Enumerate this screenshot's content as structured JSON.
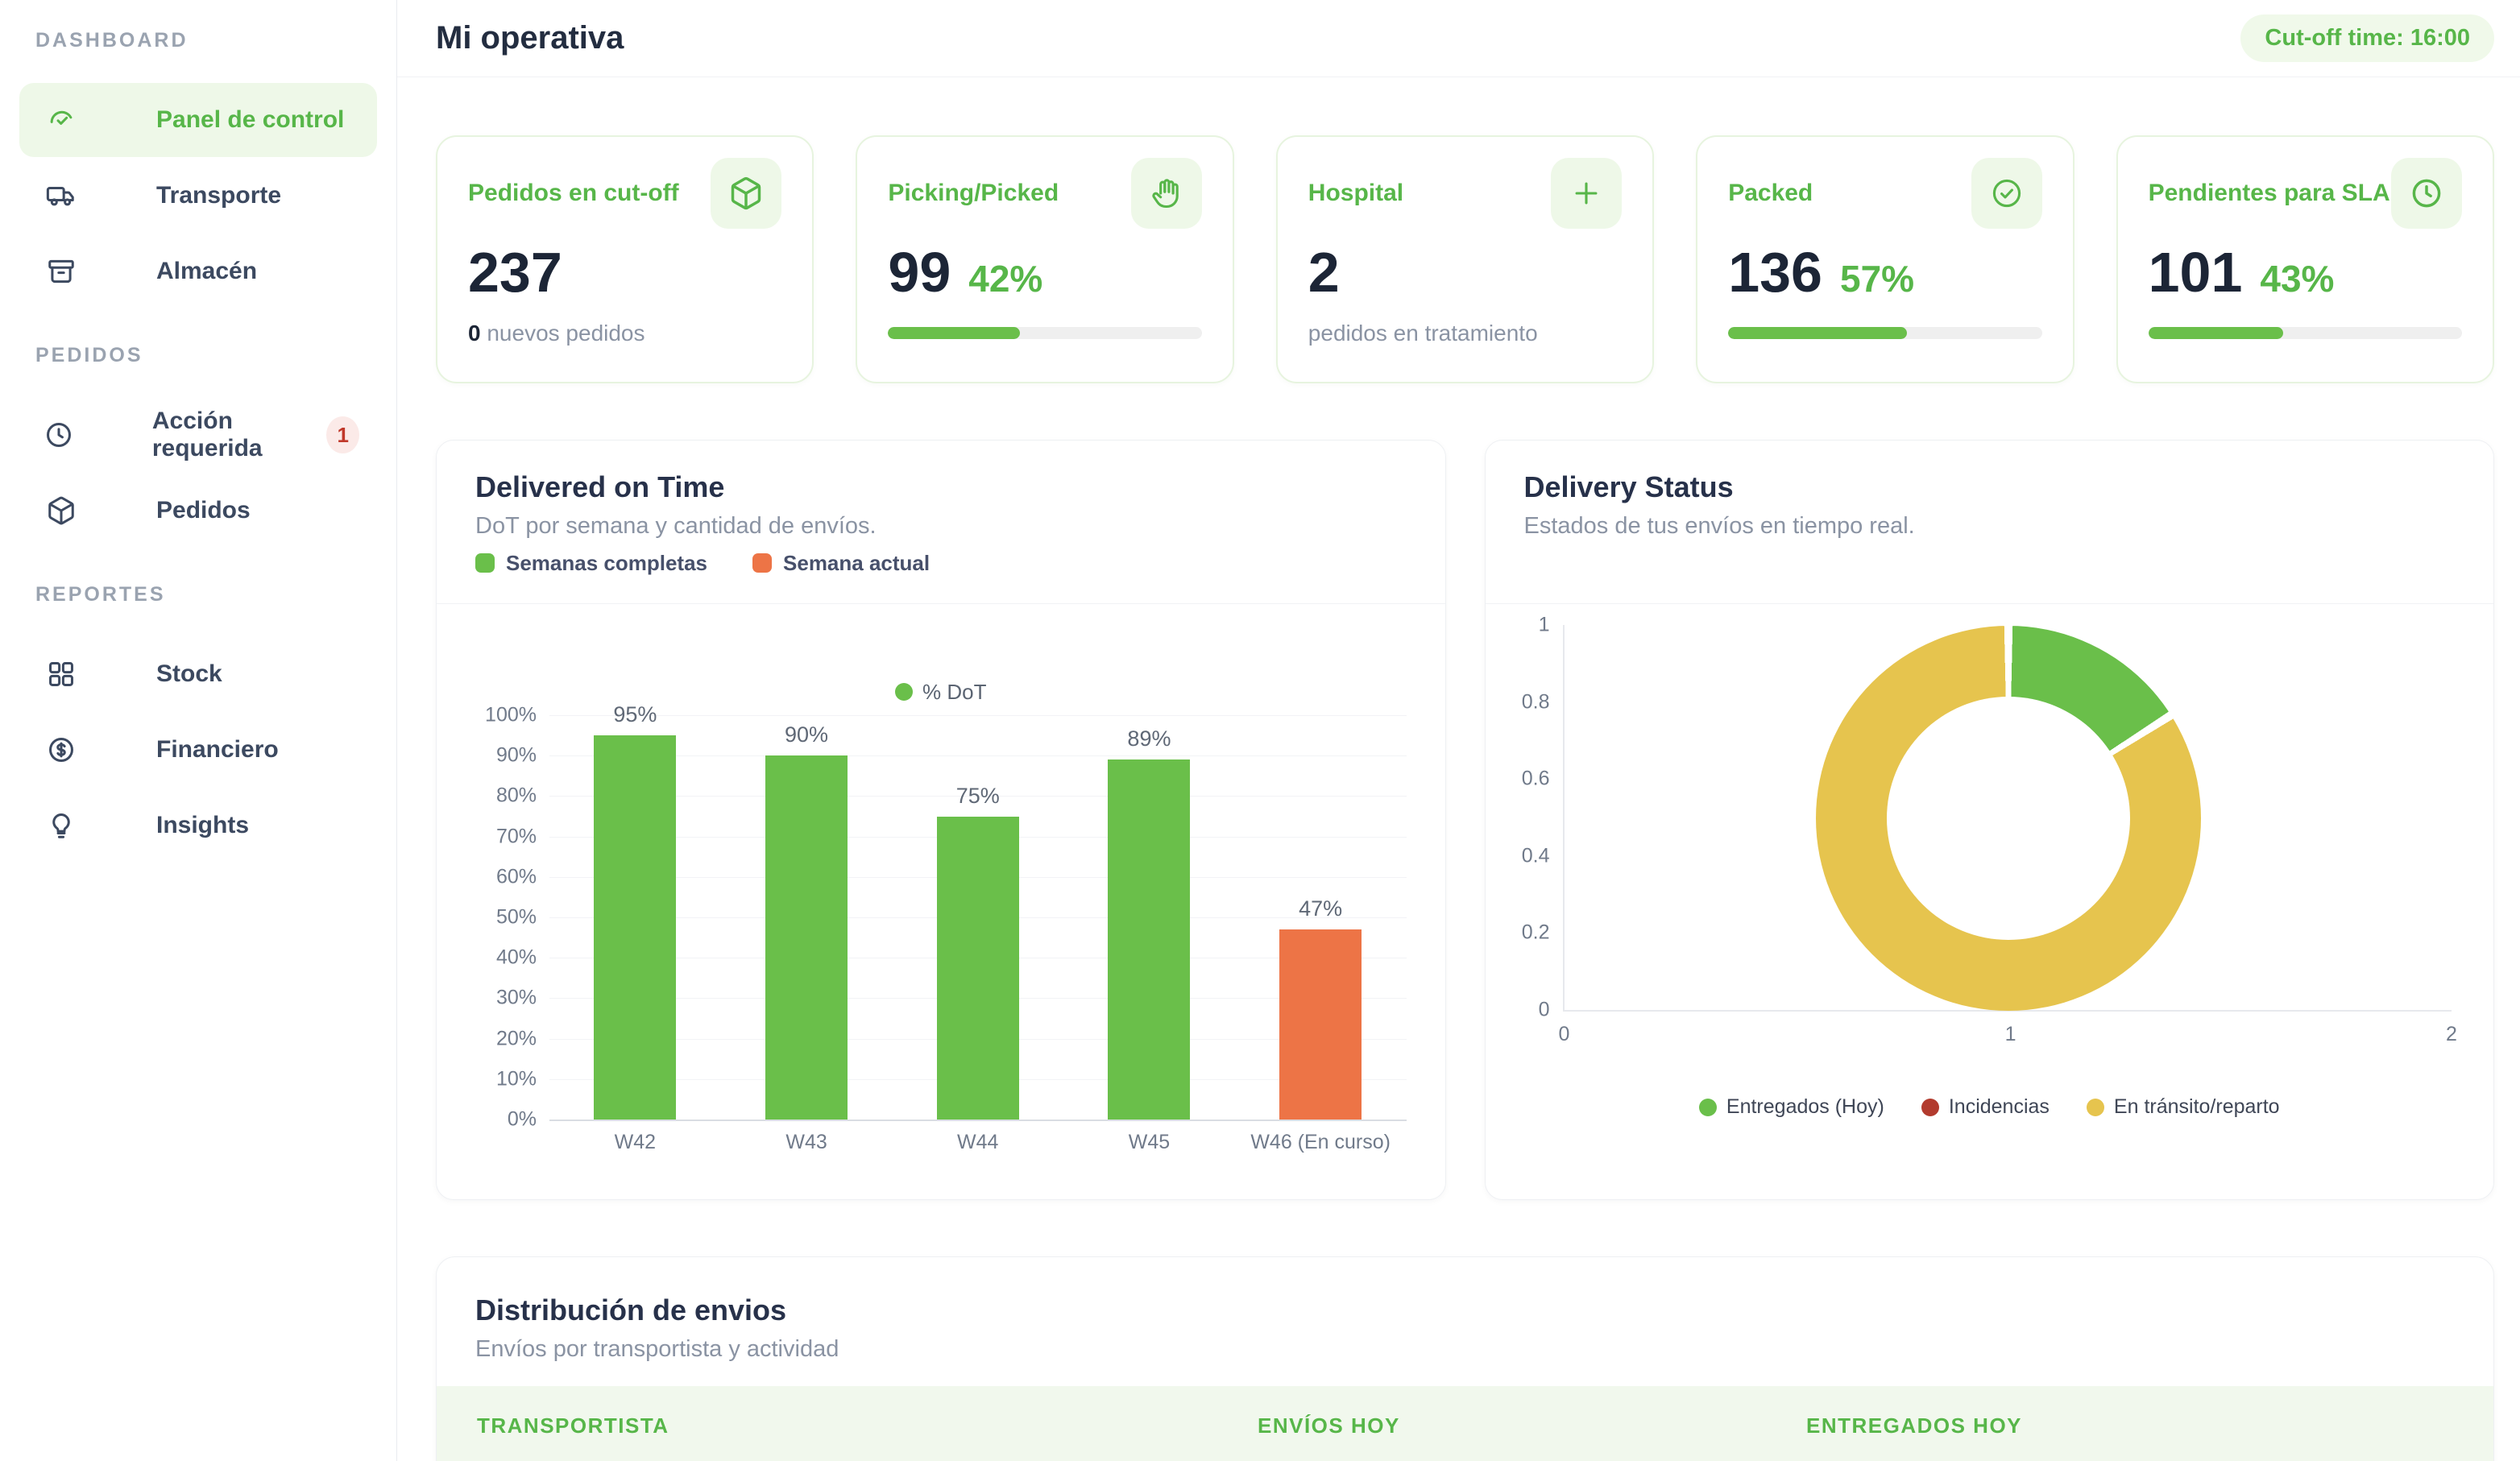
{
  "colors": {
    "accent_green_text": "#57b649",
    "accent_green_fill": "#6abf4a",
    "accent_green_bg": "#eef8e8",
    "orange": "#ed7446",
    "yellow": "#e6c44e",
    "brick_red": "#b23b2e",
    "badge_red_text": "#c0392b",
    "badge_red_bg": "#fbeae8",
    "dark_navy": "#1c2536"
  },
  "sidebar": {
    "sections": [
      {
        "label": "DASHBOARD",
        "items": [
          {
            "label": "Panel de control",
            "icon": "gauge-icon",
            "active": true
          },
          {
            "label": "Transporte",
            "icon": "truck-icon"
          },
          {
            "label": "Almacén",
            "icon": "archive-box-icon"
          }
        ]
      },
      {
        "label": "PEDIDOS",
        "items": [
          {
            "label": "Acción requerida",
            "icon": "clock-icon",
            "badge": "1"
          },
          {
            "label": "Pedidos",
            "icon": "package-icon"
          }
        ]
      },
      {
        "label": "REPORTES",
        "items": [
          {
            "label": "Stock",
            "icon": "grid-icon"
          },
          {
            "label": "Financiero",
            "icon": "dollar-icon"
          },
          {
            "label": "Insights",
            "icon": "bulb-icon"
          }
        ]
      }
    ]
  },
  "header": {
    "title": "Mi operativa",
    "cutoff": "Cut-off time: 16:00"
  },
  "kpis": [
    {
      "title": "Pedidos en cut-off",
      "icon": "package-icon",
      "value": "237",
      "sub_bold": "0",
      "sub": " nuevos pedidos"
    },
    {
      "title": "Picking/Picked",
      "icon": "hand-icon",
      "value": "99",
      "percent": "42%",
      "progress": 42
    },
    {
      "title": "Hospital",
      "icon": "plus-icon",
      "value": "2",
      "sub": "pedidos en tratamiento"
    },
    {
      "title": "Packed",
      "icon": "check-circle-icon",
      "value": "136",
      "percent": "57%",
      "progress": 57
    },
    {
      "title": "Pendientes para SLA",
      "icon": "clock-icon",
      "value": "101",
      "percent": "43%",
      "progress": 43
    }
  ],
  "chart_data": [
    {
      "id": "delivered_on_time",
      "type": "bar",
      "title": "Delivered on Time",
      "subtitle": "DoT por semana y cantidad de envíos.",
      "categories": [
        "W42",
        "W43",
        "W44",
        "W45",
        "W46 (En curso)"
      ],
      "series": [
        {
          "name": "% DoT",
          "values": [
            95,
            90,
            75,
            89,
            47
          ]
        }
      ],
      "value_labels": [
        "95%",
        "90%",
        "75%",
        "89%",
        "47%"
      ],
      "bar_colors": [
        "#6abf4a",
        "#6abf4a",
        "#6abf4a",
        "#6abf4a",
        "#ed7446"
      ],
      "ylim": [
        0,
        100
      ],
      "ytick_step": 10,
      "ytick_suffix": "%",
      "grid": true,
      "header_legend": [
        {
          "label": "Semanas completas",
          "color": "#6abf4a"
        },
        {
          "label": "Semana actual",
          "color": "#ed7446"
        }
      ],
      "plot_legend": {
        "label": "% DoT",
        "color": "#6abf4a"
      }
    },
    {
      "id": "delivery_status",
      "type": "pie",
      "title": "Delivery Status",
      "subtitle": "Estados de tus envíos en tiempo real.",
      "donut": true,
      "slices": [
        {
          "label": "Entregados (Hoy)",
          "color": "#6abf4a",
          "percent": 16
        },
        {
          "label": "Incidencias",
          "color": "#b23b2e",
          "percent": 0
        },
        {
          "label": "En tránsito/reparto",
          "color": "#e6c44e",
          "percent": 84
        }
      ],
      "y_ticks": [
        "1",
        "0.8",
        "0.6",
        "0.4",
        "0.2",
        "0"
      ],
      "x_ticks": [
        "0",
        "1",
        "2"
      ],
      "legend_position": "bottom"
    }
  ],
  "distribution": {
    "title": "Distribución de envios",
    "subtitle": "Envíos por transportista y actividad",
    "columns": [
      "TRANSPORTISTA",
      "ENVÍOS HOY",
      "ENTREGADOS HOY"
    ]
  }
}
